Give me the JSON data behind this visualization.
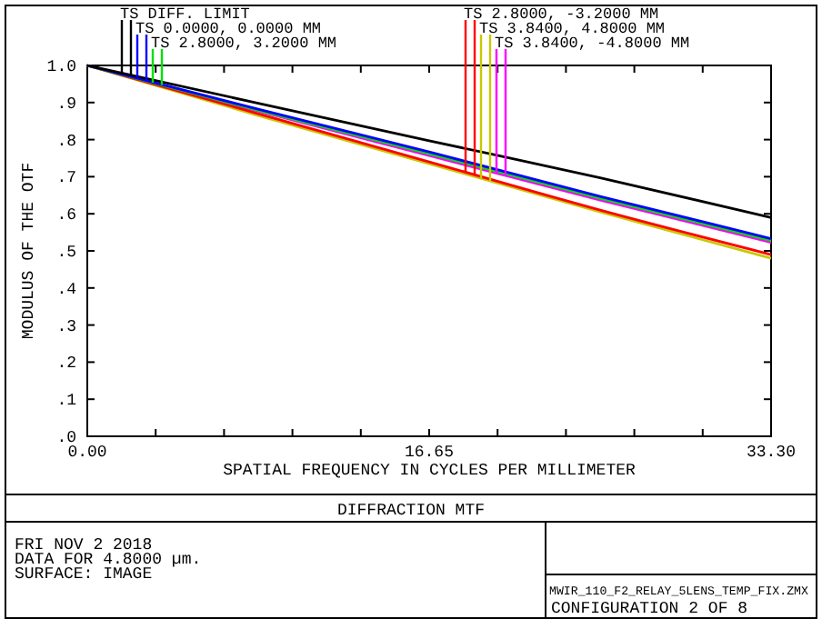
{
  "chart_data": {
    "type": "line",
    "title": "DIFFRACTION MTF",
    "xlabel": "SPATIAL FREQUENCY IN CYCLES PER MILLIMETER",
    "ylabel": "MODULUS OF THE OTF",
    "x": [
      0,
      8.325,
      16.65,
      24.975,
      33.3
    ],
    "xlim": [
      0,
      33.3
    ],
    "xticks": [
      {
        "value": 0,
        "label": "0.00"
      },
      {
        "value": 3.33,
        "label": null
      },
      {
        "value": 6.66,
        "label": null
      },
      {
        "value": 9.99,
        "label": null
      },
      {
        "value": 13.32,
        "label": null
      },
      {
        "value": 16.65,
        "label": "16.65"
      },
      {
        "value": 19.98,
        "label": null
      },
      {
        "value": 23.31,
        "label": null
      },
      {
        "value": 26.64,
        "label": null
      },
      {
        "value": 29.97,
        "label": null
      },
      {
        "value": 33.3,
        "label": "33.30"
      }
    ],
    "ylim": [
      0,
      1
    ],
    "yticks": [
      {
        "value": 0,
        "label": ".0"
      },
      {
        "value": 0.1,
        "label": ".1"
      },
      {
        "value": 0.2,
        "label": ".2"
      },
      {
        "value": 0.3,
        "label": ".3"
      },
      {
        "value": 0.4,
        "label": ".4"
      },
      {
        "value": 0.5,
        "label": ".5"
      },
      {
        "value": 0.6,
        "label": ".6"
      },
      {
        "value": 0.7,
        "label": ".7"
      },
      {
        "value": 0.8,
        "label": ".8"
      },
      {
        "value": 0.9,
        "label": ".9"
      },
      {
        "value": 1,
        "label": "1.0"
      }
    ],
    "series": [
      {
        "name": "TS DIFF. LIMIT",
        "color": "#000000",
        "values": [
          1,
          0.898,
          0.797,
          0.697,
          0.59
        ]
      },
      {
        "name": "TS 0.0000, 0.0000 MM",
        "color": "#0000ff",
        "values": [
          1,
          0.882,
          0.767,
          0.647,
          0.533
        ]
      },
      {
        "name": "TS 2.8000, 3.2000 MM",
        "color": "#00e000",
        "values": [
          1,
          0.879,
          0.762,
          0.642,
          0.528
        ]
      },
      {
        "name": "TS 2.8000, -3.2000 MM",
        "color": "#ff0000",
        "values": [
          1,
          0.87,
          0.74,
          0.61,
          0.49
        ]
      },
      {
        "name": "TS 3.8400, 4.8000 MM",
        "color": "#c8c800",
        "values": [
          1,
          0.865,
          0.735,
          0.605,
          0.48
        ]
      },
      {
        "name": "TS 3.8400, -4.8000 MM",
        "color": "#ff00ff",
        "values": [
          1,
          0.877,
          0.757,
          0.637,
          0.523
        ]
      }
    ],
    "legend": "top",
    "grid": false,
    "marker": "none",
    "line_style": "solid",
    "annotations": [
      "FRI NOV 2 2018",
      "DATA FOR 4.8000 µm.",
      "SURFACE: IMAGE",
      "MWIR_110_F2_RELAY_5LENS_TEMP_FIX.ZMX",
      "CONFIGURATION 2 OF 8"
    ]
  }
}
